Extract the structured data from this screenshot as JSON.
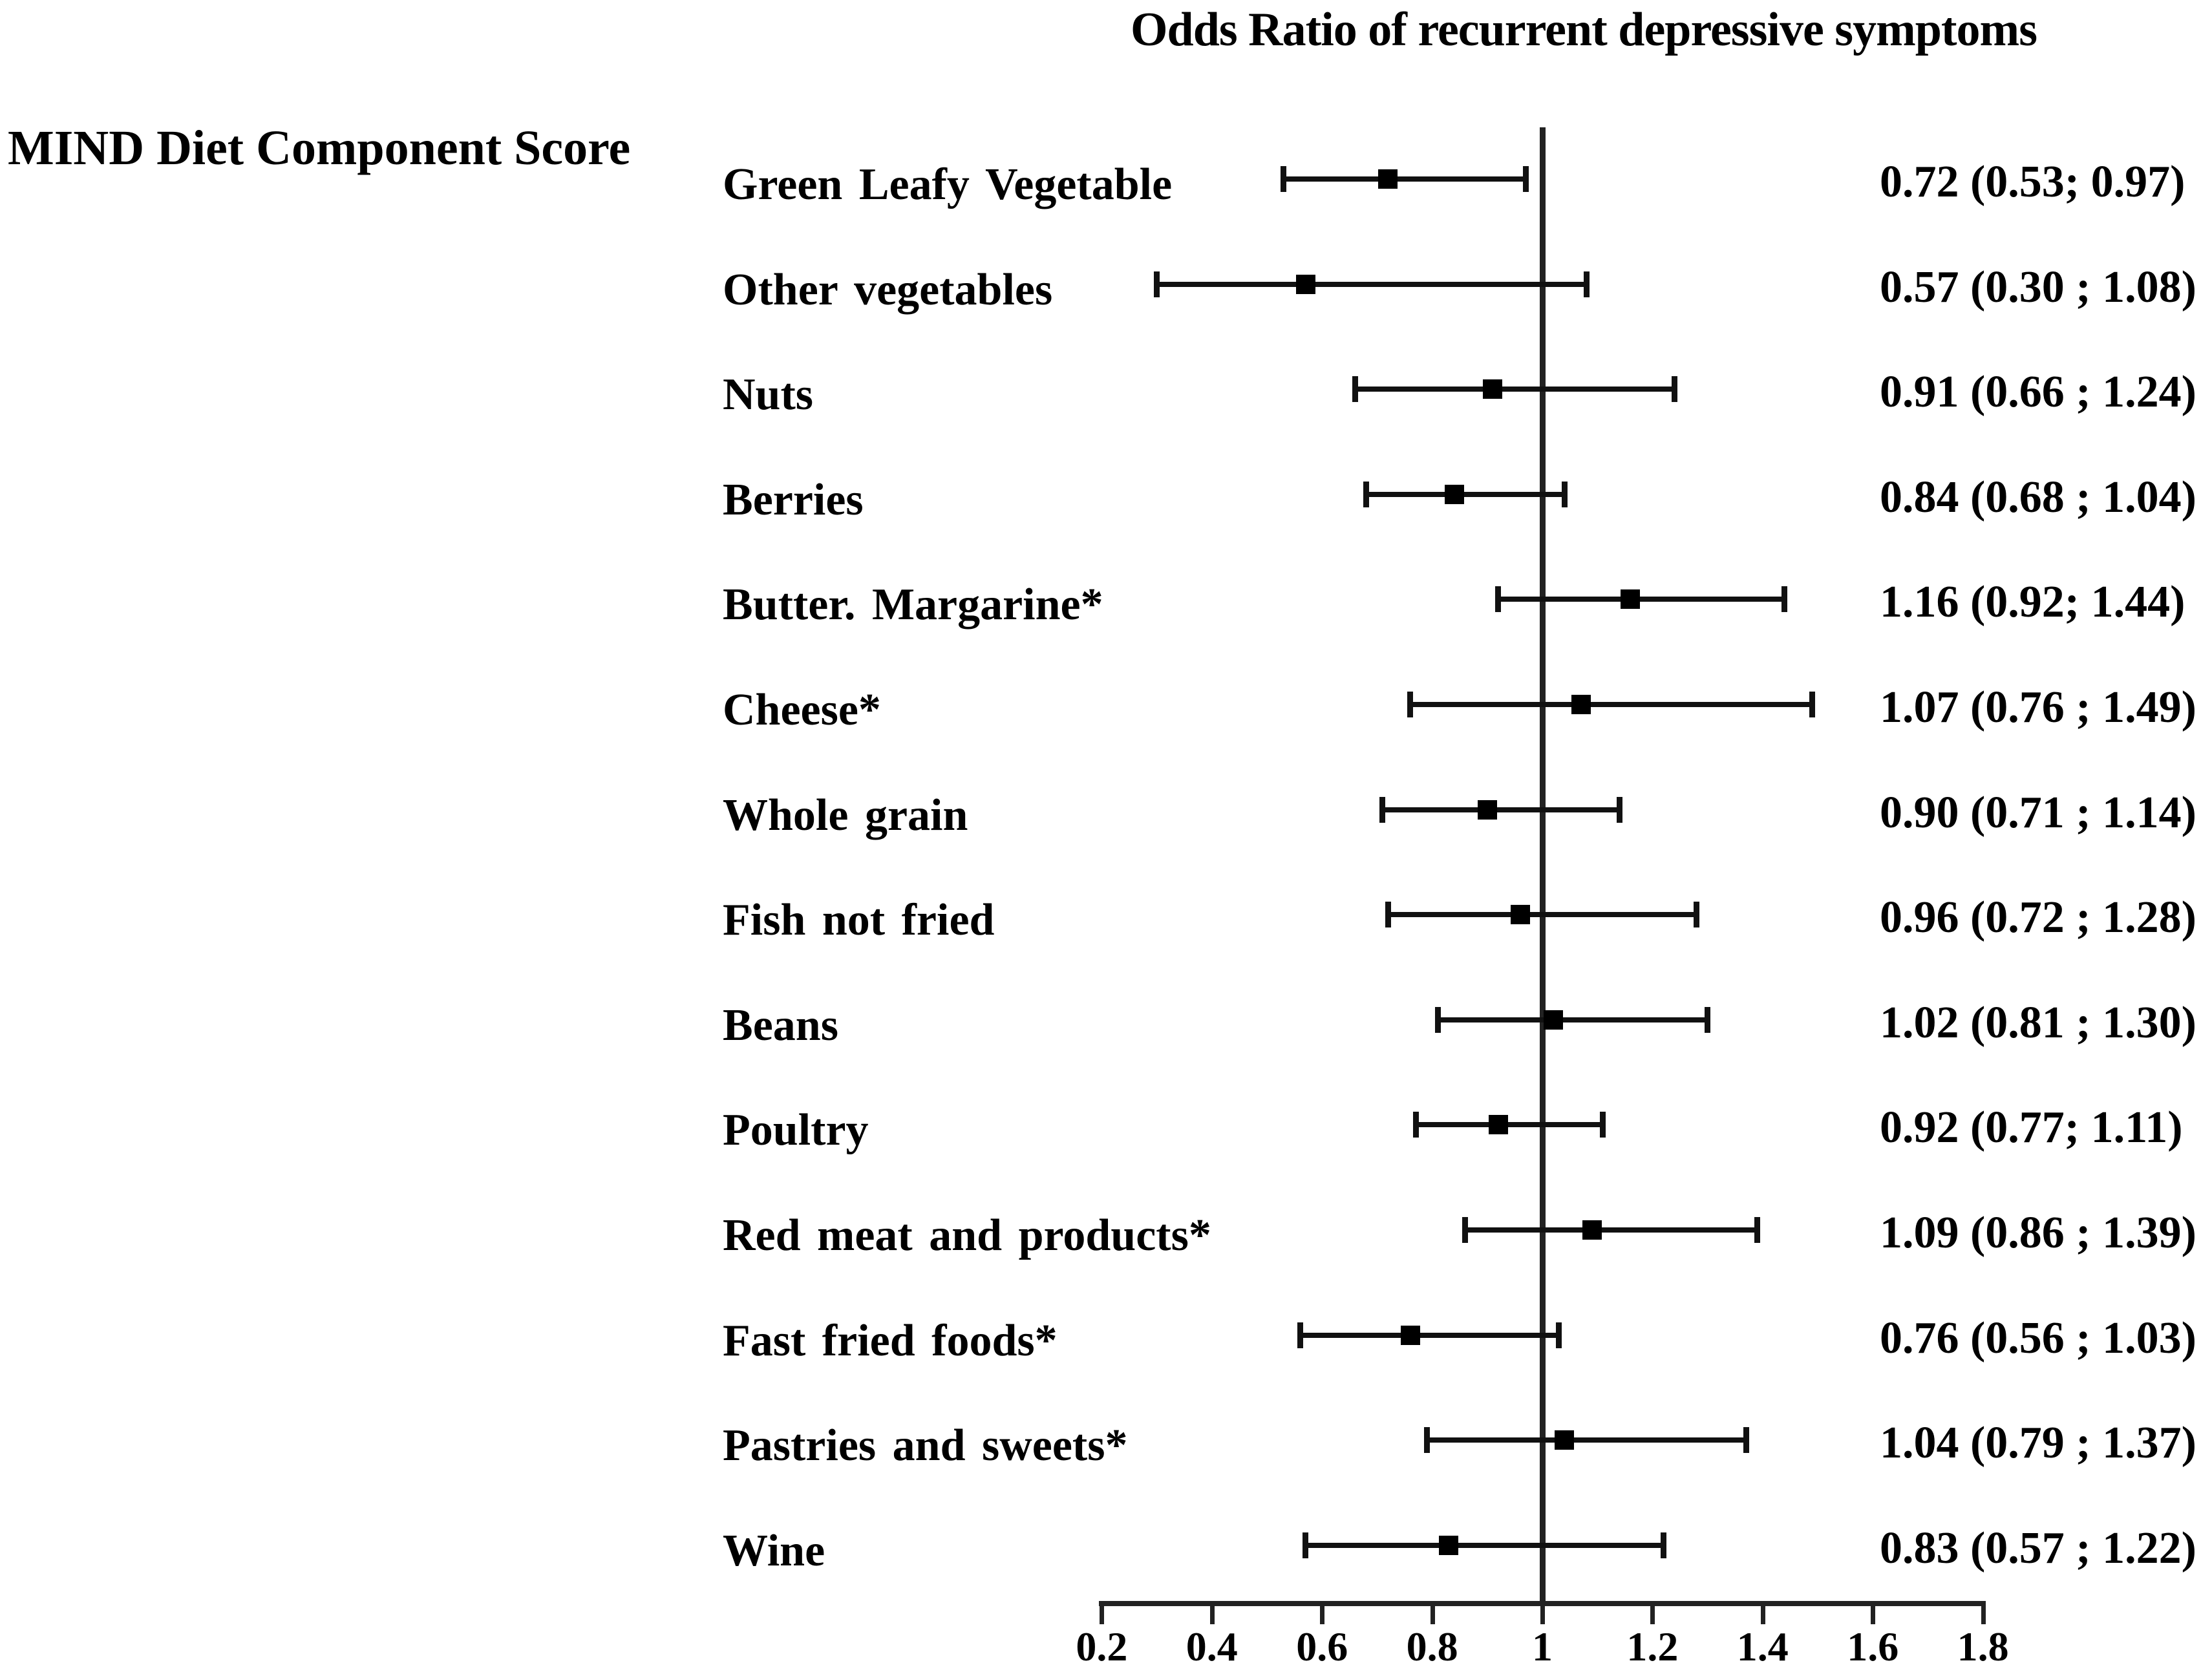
{
  "chart_data": {
    "type": "forest",
    "title": "Odds Ratio of recurrent depressive symptoms",
    "group_label": "MIND Diet Component Score",
    "reference_line": 1,
    "xlim": [
      0.2,
      1.8
    ],
    "x_ticks": [
      "0.2",
      "0.4",
      "0.6",
      "0.8",
      "1",
      "1.2",
      "1.4",
      "1.6",
      "1.8"
    ],
    "grid": false,
    "legend": "none",
    "colors": {
      "marker": "#000000",
      "line": "#111111",
      "axis": "#222222",
      "text": "#000000",
      "background": "#ffffff"
    },
    "items": [
      {
        "label": "Green Leafy Vegetable",
        "or": 0.72,
        "ci_low": 0.53,
        "ci_high": 0.97,
        "value_text": "0.72 (0.53; 0.97)"
      },
      {
        "label": "Other vegetables",
        "or": 0.57,
        "ci_low": 0.3,
        "ci_high": 1.08,
        "value_text": "0.57 (0.30 ; 1.08)"
      },
      {
        "label": "Nuts",
        "or": 0.91,
        "ci_low": 0.66,
        "ci_high": 1.24,
        "value_text": "0.91 (0.66 ; 1.24)"
      },
      {
        "label": "Berries",
        "or": 0.84,
        "ci_low": 0.68,
        "ci_high": 1.04,
        "value_text": "0.84 (0.68 ; 1.04)"
      },
      {
        "label": "Butter. Margarine*",
        "or": 1.16,
        "ci_low": 0.92,
        "ci_high": 1.44,
        "value_text": "1.16 (0.92; 1.44)"
      },
      {
        "label": "Cheese*",
        "or": 1.07,
        "ci_low": 0.76,
        "ci_high": 1.49,
        "value_text": "1.07 (0.76 ; 1.49)"
      },
      {
        "label": "Whole grain",
        "or": 0.9,
        "ci_low": 0.71,
        "ci_high": 1.14,
        "value_text": "0.90 (0.71 ; 1.14)"
      },
      {
        "label": "Fish not fried",
        "or": 0.96,
        "ci_low": 0.72,
        "ci_high": 1.28,
        "value_text": "0.96 (0.72 ; 1.28)"
      },
      {
        "label": "Beans",
        "or": 1.02,
        "ci_low": 0.81,
        "ci_high": 1.3,
        "value_text": "1.02 (0.81 ; 1.30)"
      },
      {
        "label": "Poultry",
        "or": 0.92,
        "ci_low": 0.77,
        "ci_high": 1.11,
        "value_text": "0.92 (0.77; 1.11)"
      },
      {
        "label": "Red meat and products*",
        "or": 1.09,
        "ci_low": 0.86,
        "ci_high": 1.39,
        "value_text": "1.09 (0.86 ; 1.39)"
      },
      {
        "label": "Fast fried foods*",
        "or": 0.76,
        "ci_low": 0.56,
        "ci_high": 1.03,
        "value_text": "0.76 (0.56 ; 1.03)"
      },
      {
        "label": "Pastries and sweets*",
        "or": 1.04,
        "ci_low": 0.79,
        "ci_high": 1.37,
        "value_text": "1.04 (0.79 ; 1.37)"
      },
      {
        "label": "Wine",
        "or": 0.83,
        "ci_low": 0.57,
        "ci_high": 1.22,
        "value_text": "0.83 (0.57 ; 1.22)"
      }
    ]
  }
}
